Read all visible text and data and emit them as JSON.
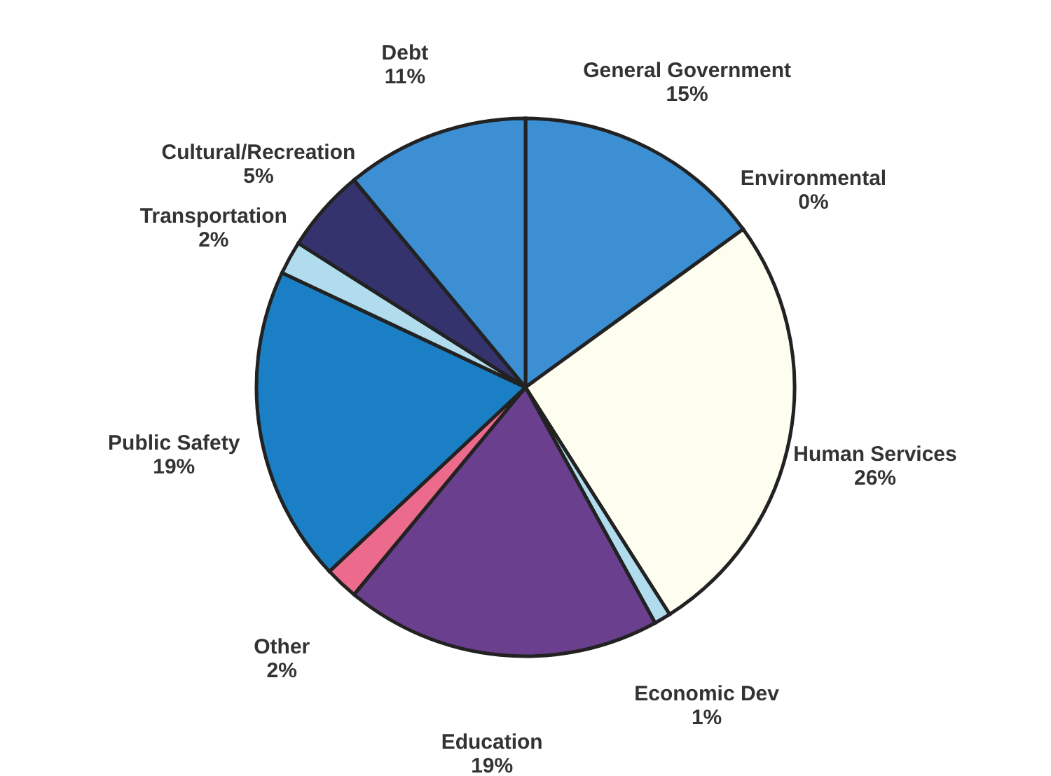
{
  "chart_data": {
    "type": "pie",
    "categories": [
      "General Government",
      "Environmental",
      "Human Services",
      "Economic Dev",
      "Education",
      "Other",
      "Public Safety",
      "Transportation",
      "Cultural/Recreation",
      "Debt"
    ],
    "values": [
      15,
      0,
      26,
      1,
      19,
      2,
      19,
      2,
      5,
      11
    ],
    "value_labels": [
      "15%",
      "0%",
      "26%",
      "1%",
      "19%",
      "2%",
      "19%",
      "2%",
      "5%",
      "11%"
    ],
    "colors": [
      "#3b8fd2",
      "#b8305a",
      "#fdfdf0",
      "#b0dcee",
      "#6a3f8e",
      "#ec6a8c",
      "#1a7fc4",
      "#b0dcee",
      "#35336e",
      "#3b8fd2"
    ],
    "legend": false
  }
}
